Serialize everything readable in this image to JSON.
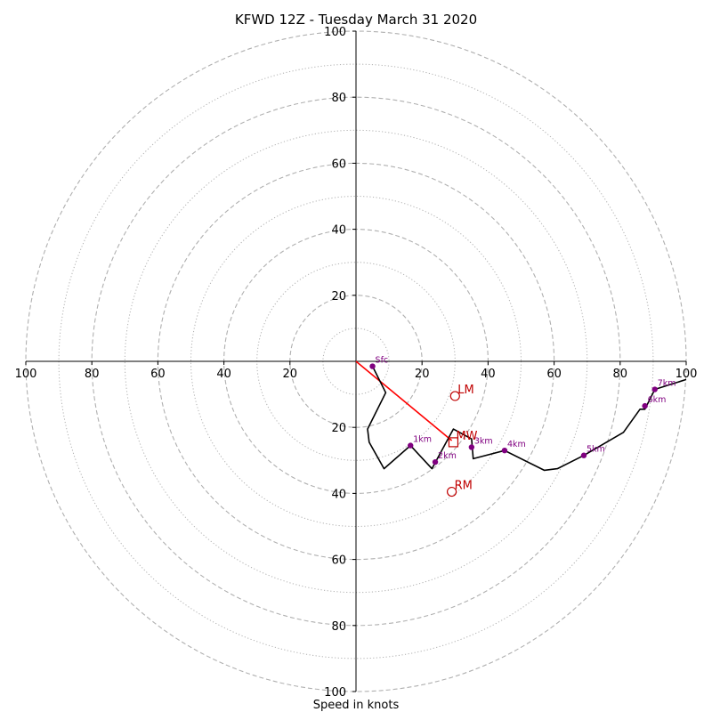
{
  "chart_data": {
    "type": "hodograph",
    "title": "KFWD 12Z - Tuesday March 31 2020",
    "xlabel": "Speed in knots",
    "ylabel": "",
    "xlim": [
      -100,
      100
    ],
    "ylim": [
      -100,
      100
    ],
    "grid": true,
    "ring_speeds_dashed": [
      20,
      40,
      60,
      80,
      100
    ],
    "ring_speeds_dotted": [
      10,
      30,
      50,
      70,
      90
    ],
    "x_tick_labels": [
      "100",
      "80",
      "60",
      "40",
      "20",
      "20",
      "40",
      "60",
      "80",
      "100"
    ],
    "x_tick_values": [
      -100,
      -80,
      -60,
      -40,
      -20,
      20,
      40,
      60,
      80,
      100
    ],
    "y_tick_labels": [
      "100",
      "80",
      "60",
      "40",
      "20",
      "20",
      "40",
      "60",
      "80",
      "100"
    ],
    "y_tick_values": [
      100,
      80,
      60,
      40,
      20,
      -20,
      -40,
      -60,
      -80,
      -100
    ],
    "series": [
      {
        "values_uv": [
          [
            5,
            -1.5
          ],
          [
            9,
            -9.5
          ],
          [
            3.5,
            -20.5
          ],
          [
            4,
            -24.5
          ],
          [
            8.5,
            -32.5
          ],
          [
            16.5,
            -25.5
          ],
          [
            23,
            -32.5
          ],
          [
            29.5,
            -20.5
          ],
          [
            35,
            -23.5
          ],
          [
            35.5,
            -29.5
          ],
          [
            45,
            -27
          ],
          [
            57,
            -33
          ],
          [
            61,
            -32.5
          ],
          [
            69,
            -28.5
          ],
          [
            81,
            -21.5
          ],
          [
            86,
            -14.5
          ],
          [
            87.5,
            -14.5
          ],
          [
            90.5,
            -8.5
          ],
          [
            100,
            -5.5
          ]
        ]
      }
    ],
    "height_markers": [
      {
        "label": "Sfc",
        "u": 5,
        "v": -1.5
      },
      {
        "label": "1km",
        "u": 16.5,
        "v": -25.5
      },
      {
        "label": "2km",
        "u": 24,
        "v": -30.5
      },
      {
        "label": "3km",
        "u": 35,
        "v": -26
      },
      {
        "label": "4km",
        "u": 45,
        "v": -27
      },
      {
        "label": "5km",
        "u": 69,
        "v": -28.5
      },
      {
        "label": "6km",
        "u": 87.5,
        "v": -13.5
      },
      {
        "label": "7km",
        "u": 90.5,
        "v": -8.5
      }
    ],
    "storm_motion": [
      {
        "label": "LM",
        "u": 30,
        "v": -10.5,
        "marker": "circle"
      },
      {
        "label": "MW",
        "u": 29.5,
        "v": -24.5,
        "marker": "square"
      },
      {
        "label": "RM",
        "u": 29,
        "v": -39.5,
        "marker": "circle"
      }
    ],
    "shear_vector": {
      "from": [
        0,
        0
      ],
      "to": [
        29,
        -24
      ]
    },
    "colors": {
      "hodograph_line": "#000000",
      "height_marker": "#800080",
      "storm_motion": "#c00000",
      "shear_vector": "#ff0000",
      "grid": "#b0b0b0"
    }
  }
}
